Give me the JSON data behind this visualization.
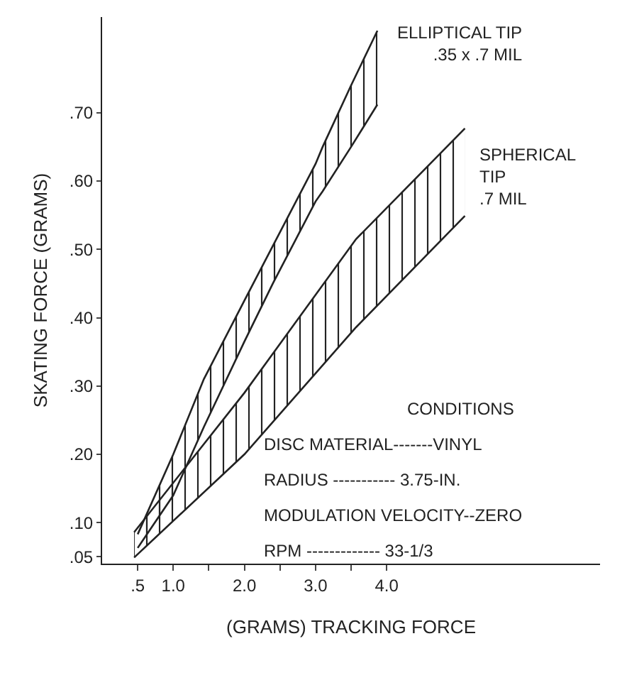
{
  "chart_data": {
    "type": "line",
    "xlabel": "(GRAMS) TRACKING FORCE",
    "ylabel": "SKATING FORCE (GRAMS)",
    "series": [
      {
        "name": "ELLIPTICAL TIP\n.35 x .7 MIL",
        "color": "#222222",
        "x": [
          0.5,
          1.0,
          1.43,
          2.0,
          2.4,
          3.0,
          3.1,
          3.5,
          3.87
        ],
        "values": [
          0.083,
          0.2,
          0.31,
          0.425,
          0.505,
          0.625,
          0.65,
          0.74,
          0.82
        ],
        "lower": [
          0.063,
          0.14,
          0.24,
          0.365,
          0.45,
          0.57,
          0.585,
          0.65,
          0.712
        ],
        "upper": [
          0.083,
          0.2,
          0.31,
          0.425,
          0.505,
          0.625,
          0.65,
          0.74,
          0.82
        ]
      },
      {
        "color": "#222222",
        "x": [
          0.5,
          1.0,
          1.43,
          2.0,
          2.4,
          3.0,
          3.1,
          3.5,
          3.87
        ],
        "values": [
          0.063,
          0.14,
          0.24,
          0.365,
          0.45,
          0.57,
          0.585,
          0.65,
          0.712
        ]
      },
      {
        "color": "#222222",
        "x": [
          0.45,
          2.0,
          3.57,
          5.1
        ],
        "values": [
          0.049,
          0.2,
          0.386,
          0.549
        ]
      },
      {
        "name": "SPHERICAL\nTIP\n.7 MIL",
        "color": "#222222",
        "x": [
          0.45,
          2.0,
          3.57,
          5.1
        ],
        "values": [
          0.086,
          0.29,
          0.515,
          0.677
        ],
        "lower": [
          0.049,
          0.2,
          0.386,
          0.549
        ],
        "upper": [
          0.086,
          0.29,
          0.515,
          0.677
        ]
      }
    ],
    "xlim": [
      0,
      7.0
    ],
    "ylim": [
      0.04,
      0.84
    ],
    "xticks": [
      {
        "value": 0.5,
        "label": ".5"
      },
      {
        "value": 1,
        "label": "1.0"
      },
      {
        "value": 1.5,
        "label": null
      },
      {
        "value": 2,
        "label": "2.0"
      },
      {
        "value": 2.5,
        "label": null
      },
      {
        "value": 3,
        "label": "3.0"
      },
      {
        "value": 3.5,
        "label": null
      },
      {
        "value": 4,
        "label": "4.0"
      }
    ],
    "yticks": [
      {
        "value": 0.05,
        "label": ".05"
      },
      {
        "value": 0.1,
        "label": ".10"
      },
      {
        "value": 0.2,
        "label": ".20"
      },
      {
        "value": 0.3,
        "label": ".30"
      },
      {
        "value": 0.4,
        "label": ".40"
      },
      {
        "value": 0.5,
        "label": ".50"
      },
      {
        "value": 0.6,
        "label": ".60"
      },
      {
        "value": 0.7,
        "label": ".70"
      }
    ],
    "grid": false,
    "legend": false,
    "marker": "none",
    "line_style": "solid",
    "annotations": [
      "CONDITIONS",
      "DISC MATERIAL-------VINYL",
      "RADIUS ----------- 3.75-IN.",
      "MODULATION VELOCITY--ZERO",
      "RPM ------------- 33-1/3"
    ]
  }
}
